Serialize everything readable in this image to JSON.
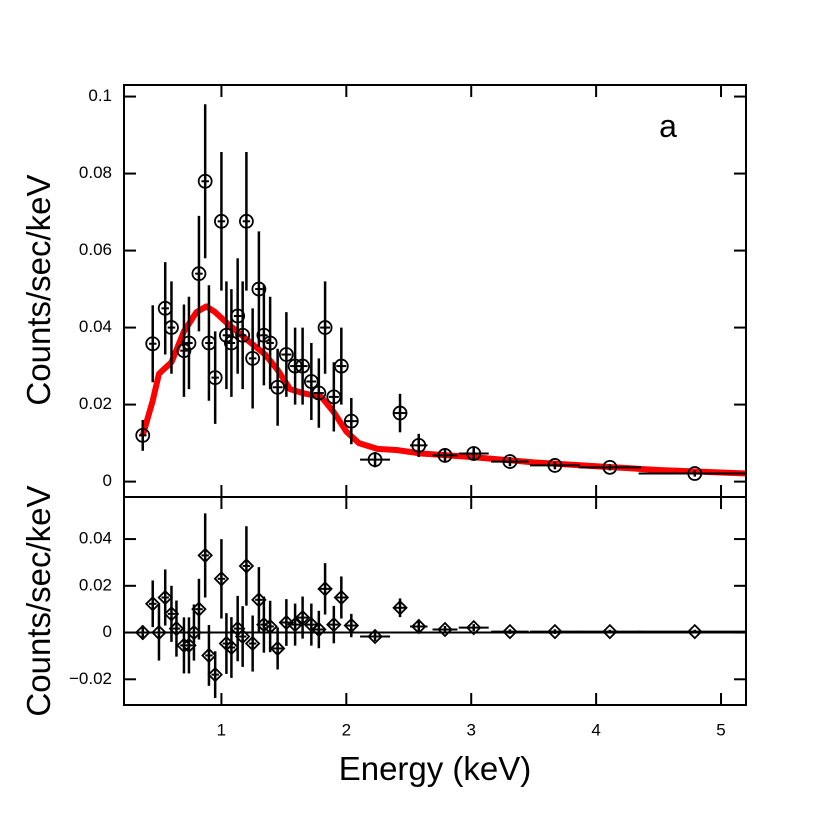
{
  "chart_data": [
    {
      "type": "scatter",
      "ylabel": "Counts/sec/keV",
      "annotation": "a",
      "x": [
        0.37,
        0.45,
        0.55,
        0.6,
        0.7,
        0.74,
        0.82,
        0.87,
        0.9,
        0.95,
        1.0,
        1.04,
        1.08,
        1.13,
        1.17,
        1.2,
        1.25,
        1.3,
        1.34,
        1.39,
        1.45,
        1.52,
        1.59,
        1.65,
        1.72,
        1.78,
        1.83,
        1.9,
        1.96,
        2.04,
        2.23,
        2.43,
        2.58,
        2.79,
        3.02,
        3.31,
        3.67,
        4.11,
        4.79
      ],
      "values": [
        0.012,
        0.0358,
        0.045,
        0.04,
        0.034,
        0.036,
        0.054,
        0.078,
        0.036,
        0.027,
        0.0676,
        0.038,
        0.036,
        0.043,
        0.038,
        0.0676,
        0.032,
        0.05,
        0.038,
        0.036,
        0.0245,
        0.033,
        0.03,
        0.03,
        0.026,
        0.023,
        0.04,
        0.022,
        0.03,
        0.0157,
        0.0057,
        0.0178,
        0.0094,
        0.0068,
        0.0073,
        0.0052,
        0.0042,
        0.0037,
        0.0021
      ],
      "yerr": [
        0.004,
        0.01,
        0.012,
        0.012,
        0.012,
        0.012,
        0.015,
        0.02,
        0.015,
        0.012,
        0.018,
        0.014,
        0.014,
        0.015,
        0.014,
        0.018,
        0.013,
        0.015,
        0.013,
        0.012,
        0.01,
        0.011,
        0.01,
        0.01,
        0.01,
        0.009,
        0.012,
        0.009,
        0.01,
        0.006,
        0.002,
        0.005,
        0.003,
        0.0015,
        0.0015,
        0.0012,
        0.001,
        0.0008,
        0.0008
      ],
      "xerr": [
        0.03,
        0.03,
        0.03,
        0.03,
        0.03,
        0.03,
        0.03,
        0.03,
        0.03,
        0.03,
        0.03,
        0.03,
        0.03,
        0.03,
        0.03,
        0.03,
        0.03,
        0.03,
        0.03,
        0.03,
        0.04,
        0.04,
        0.04,
        0.04,
        0.04,
        0.04,
        0.04,
        0.04,
        0.04,
        0.05,
        0.12,
        0.05,
        0.07,
        0.1,
        0.12,
        0.15,
        0.2,
        0.25,
        0.45
      ],
      "color": "#000000",
      "model": {
        "color": "#ff0000",
        "x": [
          0.37,
          0.45,
          0.5,
          0.6,
          0.7,
          0.8,
          0.88,
          0.95,
          1.05,
          1.2,
          1.35,
          1.45,
          1.55,
          1.65,
          1.8,
          1.9,
          2.0,
          2.1,
          2.25,
          2.4,
          2.6,
          3.0,
          3.5,
          4.0,
          4.5,
          5.2
        ],
        "values": [
          0.012,
          0.021,
          0.028,
          0.031,
          0.039,
          0.044,
          0.0455,
          0.044,
          0.041,
          0.037,
          0.033,
          0.029,
          0.024,
          0.023,
          0.022,
          0.018,
          0.013,
          0.01,
          0.0085,
          0.0082,
          0.0073,
          0.0064,
          0.005,
          0.004,
          0.003,
          0.0021
        ]
      },
      "xlim": [
        0.22,
        5.2
      ],
      "xticks": [
        1,
        2,
        3,
        4,
        5
      ],
      "ylim": [
        -0.004,
        0.103
      ],
      "yticks": [
        0,
        0.02,
        0.04,
        0.06,
        0.08,
        0.1
      ]
    },
    {
      "type": "scatter",
      "ylabel": "Counts/sec/keV",
      "xlabel": "Energy (keV)",
      "x": [
        0.37,
        0.45,
        0.5,
        0.55,
        0.6,
        0.64,
        0.7,
        0.74,
        0.78,
        0.82,
        0.87,
        0.9,
        0.95,
        1.0,
        1.04,
        1.08,
        1.13,
        1.17,
        1.2,
        1.25,
        1.3,
        1.34,
        1.39,
        1.45,
        1.52,
        1.59,
        1.65,
        1.72,
        1.78,
        1.83,
        1.9,
        1.96,
        2.04,
        2.23,
        2.43,
        2.58,
        2.79,
        3.02,
        3.31,
        3.67,
        4.11,
        4.79
      ],
      "values": [
        0,
        0.0123,
        0,
        0.015,
        0.008,
        0.0017,
        -0.0055,
        -0.0055,
        0,
        0.01,
        0.033,
        -0.0098,
        -0.018,
        0.023,
        -0.0047,
        -0.0064,
        0.0017,
        -0.0017,
        0.0285,
        -0.0047,
        0.014,
        0.0034,
        0.0026,
        -0.0068,
        0.0043,
        0.0034,
        0.0064,
        0.0034,
        0.0013,
        0.0187,
        0.0034,
        0.015,
        0.003,
        -0.0017,
        0.0106,
        0.0026,
        0.0013,
        0.0021,
        0.0004,
        0.0004,
        0.0004,
        0.0004
      ],
      "yerr": [
        0.003,
        0.01,
        0.012,
        0.012,
        0.012,
        0.012,
        0.012,
        0.012,
        0.012,
        0.013,
        0.018,
        0.013,
        0.01,
        0.017,
        0.013,
        0.013,
        0.014,
        0.013,
        0.017,
        0.012,
        0.014,
        0.012,
        0.011,
        0.009,
        0.01,
        0.009,
        0.009,
        0.009,
        0.008,
        0.011,
        0.008,
        0.009,
        0.005,
        0.002,
        0.004,
        0.003,
        0.0015,
        0.0015,
        0.001,
        0.001,
        0.0008,
        0.0008
      ],
      "xerr": [
        0.03,
        0.03,
        0.03,
        0.03,
        0.03,
        0.03,
        0.03,
        0.03,
        0.03,
        0.03,
        0.03,
        0.03,
        0.03,
        0.03,
        0.03,
        0.03,
        0.03,
        0.03,
        0.03,
        0.03,
        0.03,
        0.03,
        0.03,
        0.04,
        0.04,
        0.04,
        0.04,
        0.04,
        0.04,
        0.04,
        0.04,
        0.04,
        0.05,
        0.12,
        0.05,
        0.07,
        0.1,
        0.12,
        0.15,
        0.2,
        0.25,
        0.45
      ],
      "color": "#000000",
      "zero_line": true,
      "xlim": [
        0.22,
        5.2
      ],
      "xticks": [
        1,
        2,
        3,
        4,
        5
      ],
      "ylim": [
        -0.031,
        0.058
      ],
      "yticks": [
        {
          "value": -0.02,
          "label": "−0.02"
        },
        0,
        0.02,
        0.04
      ]
    }
  ]
}
